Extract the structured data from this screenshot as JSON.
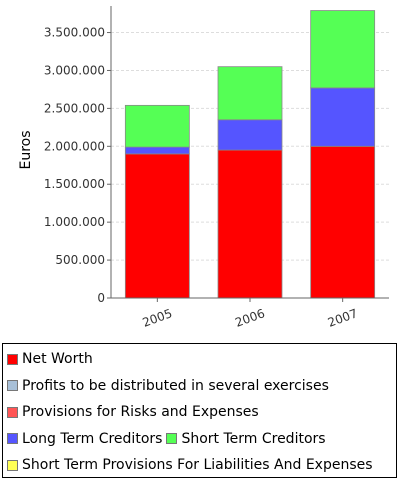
{
  "chart_data": {
    "type": "bar",
    "stacked": true,
    "categories": [
      "2005",
      "2006",
      "2007"
    ],
    "ylabel": "Euros",
    "ylim": [
      0,
      3850000
    ],
    "yticks": [
      {
        "value": 0,
        "label": "0"
      },
      {
        "value": 500000,
        "label": "500.000"
      },
      {
        "value": 1000000,
        "label": "1.000.000"
      },
      {
        "value": 1500000,
        "label": "1.500.000"
      },
      {
        "value": 2000000,
        "label": "2.000.000"
      },
      {
        "value": 2500000,
        "label": "2.500.000"
      },
      {
        "value": 3000000,
        "label": "3.000.000"
      },
      {
        "value": 3500000,
        "label": "3.500.000"
      }
    ],
    "grid": true,
    "legend_placement": "bottom",
    "series": [
      {
        "name": "Net Worth",
        "color": "#ff0000",
        "values": [
          1900000,
          1950000,
          2000000
        ]
      },
      {
        "name": "Profits to be distributed in several exercises",
        "color": "#a8c0d8",
        "values": [
          0,
          0,
          0
        ]
      },
      {
        "name": "Provisions for Risks and Expenses",
        "color": "#ff5555",
        "values": [
          0,
          0,
          0
        ]
      },
      {
        "name": "Long Term Creditors",
        "color": "#5555ff",
        "values": [
          90000,
          400000,
          770000
        ]
      },
      {
        "name": "Short Term Creditors",
        "color": "#55ff55",
        "values": [
          550000,
          700000,
          1020000
        ]
      },
      {
        "name": "Short Term Provisions For Liabilities And Expenses",
        "color": "#ffff55",
        "values": [
          0,
          0,
          0
        ]
      }
    ]
  }
}
